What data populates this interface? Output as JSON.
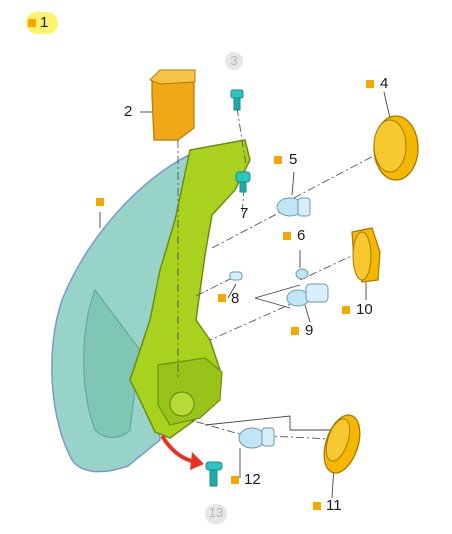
{
  "diagram": {
    "highlighted_label": "1",
    "callouts": [
      {
        "id": "2",
        "text": "2"
      },
      {
        "id": "3",
        "text": "3"
      },
      {
        "id": "4",
        "text": "4"
      },
      {
        "id": "5",
        "text": "5"
      },
      {
        "id": "6",
        "text": "6"
      },
      {
        "id": "7",
        "text": "7"
      },
      {
        "id": "8",
        "text": "8"
      },
      {
        "id": "9",
        "text": "9"
      },
      {
        "id": "10",
        "text": "10"
      },
      {
        "id": "11",
        "text": "11"
      },
      {
        "id": "12",
        "text": "12"
      },
      {
        "id": "13",
        "text": "13"
      }
    ],
    "colors": {
      "marker": "#f7a800",
      "housing": "#a8d21e",
      "lens": "#7fc6b4",
      "part_orange": "#f0a818",
      "cap_yellow": "#f5b800",
      "bulb": "#bfe6f5",
      "screw": "#2ec4c0",
      "arrow": "#e8321e",
      "highlight": "#fff36a"
    }
  }
}
